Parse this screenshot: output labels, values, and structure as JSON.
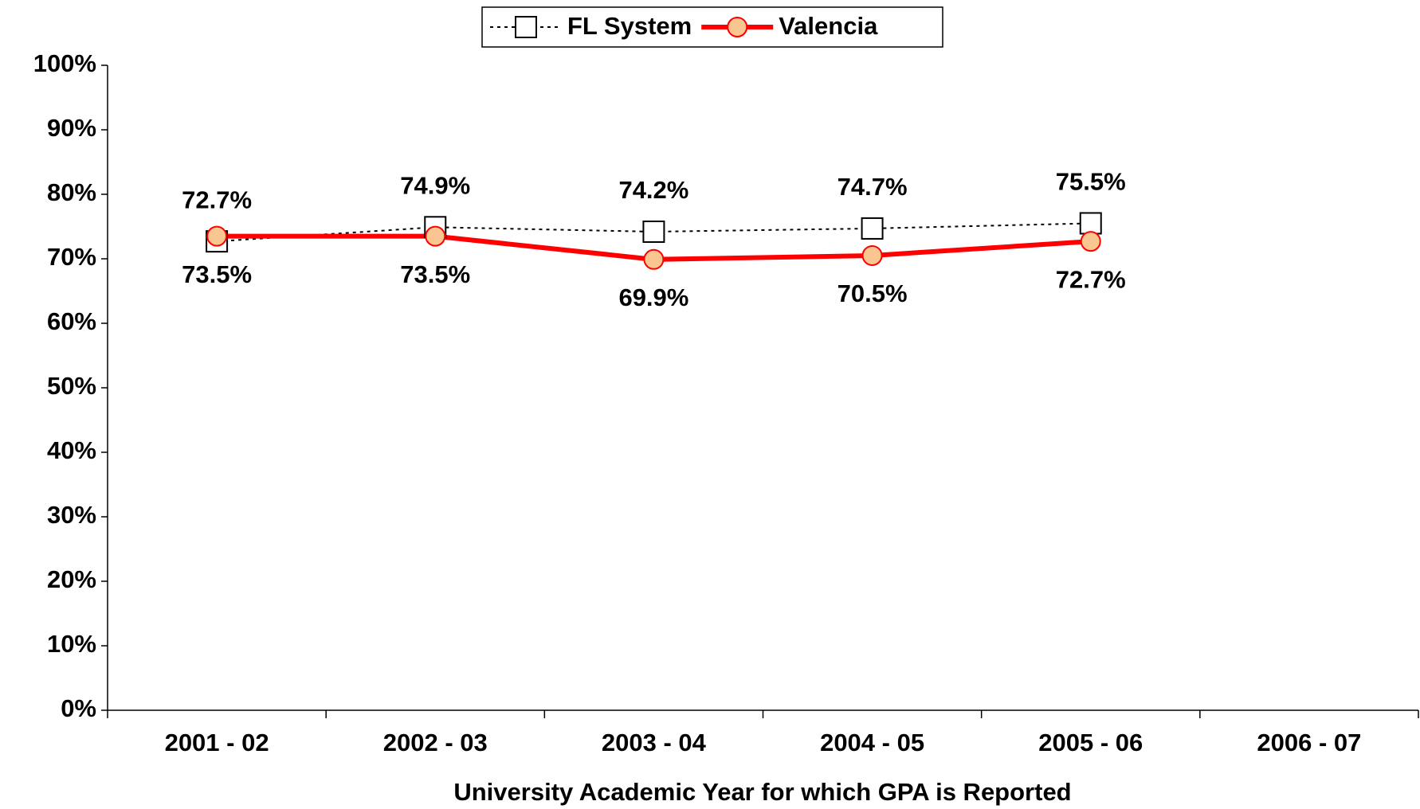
{
  "chart_data": {
    "type": "line",
    "x_label": "University Academic Year for which GPA is Reported",
    "categories": [
      "2001 - 02",
      "2002 - 03",
      "2003 - 04",
      "2004 - 05",
      "2005 - 06",
      "2006 - 07"
    ],
    "series": [
      {
        "name": "FL System",
        "color": "#000000",
        "values": [
          72.7,
          74.9,
          74.2,
          74.7,
          75.5,
          null
        ],
        "value_labels": [
          "72.7%",
          "74.9%",
          "74.2%",
          "74.7%",
          "75.5%",
          null
        ]
      },
      {
        "name": "Valencia",
        "color": "#ff0000",
        "values": [
          73.5,
          73.5,
          69.9,
          70.5,
          72.7,
          null
        ],
        "value_labels": [
          "73.5%",
          "73.5%",
          "69.9%",
          "70.5%",
          "72.7%",
          null
        ]
      }
    ],
    "ylim": [
      0,
      100
    ],
    "yticks": [
      {
        "value": 0,
        "label": "0%"
      },
      {
        "value": 10,
        "label": "10%"
      },
      {
        "value": 20,
        "label": "20%"
      },
      {
        "value": 30,
        "label": "30%"
      },
      {
        "value": 40,
        "label": "40%"
      },
      {
        "value": 50,
        "label": "50%"
      },
      {
        "value": 60,
        "label": "60%"
      },
      {
        "value": 70,
        "label": "70%"
      },
      {
        "value": 80,
        "label": "80%"
      },
      {
        "value": 90,
        "label": "90%"
      },
      {
        "value": 100,
        "label": "100%"
      }
    ],
    "legend": "top"
  }
}
